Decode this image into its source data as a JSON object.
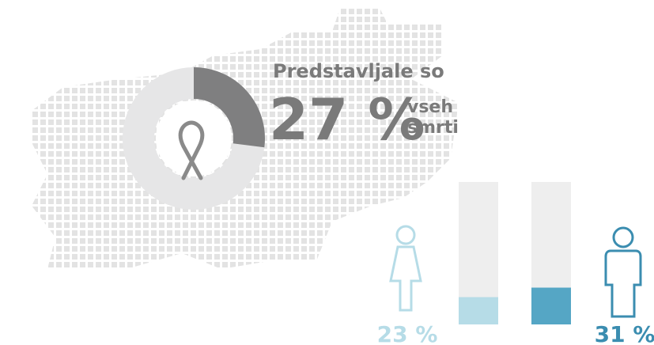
{
  "chart_data": [
    {
      "type": "pie",
      "title": "Predstavljale so",
      "values": [
        27
      ],
      "value_labels": [
        "27 %"
      ],
      "annotation": [
        "vseh",
        "smrti"
      ],
      "color": "#7f7f80"
    },
    {
      "type": "bar",
      "values": [
        23,
        31
      ],
      "value_labels": [
        "23 %",
        "31 %"
      ],
      "colors": [
        "#b6dce7",
        "#55a6c5"
      ],
      "label_colors": [
        "#b6dce7",
        "#3b8db0"
      ],
      "ylim": [
        0,
        120
      ]
    }
  ]
}
